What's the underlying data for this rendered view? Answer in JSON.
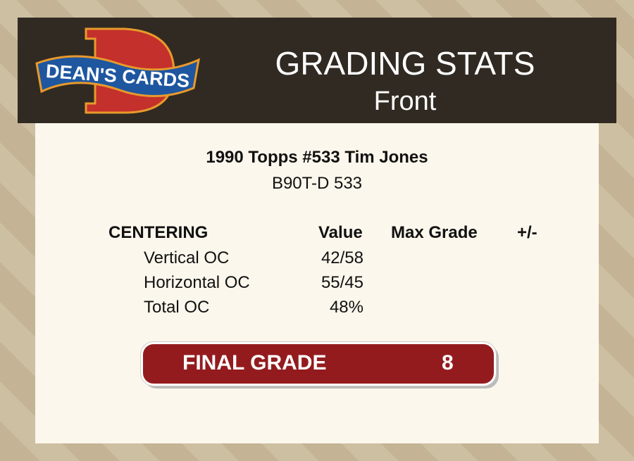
{
  "header": {
    "logo_text": "DEAN'S CARDS",
    "title": "GRADING STATS",
    "subtitle": "Front"
  },
  "card": {
    "name": "1990 Topps #533 Tim Jones",
    "code": "B90T-D 533"
  },
  "table": {
    "headers": [
      "CENTERING",
      "Value",
      "Max Grade",
      "+/-"
    ],
    "rows": [
      {
        "label": "Vertical OC",
        "value": "42/58"
      },
      {
        "label": "Horizontal OC",
        "value": "55/45"
      },
      {
        "label": "Total OC",
        "value": "48%"
      }
    ]
  },
  "final": {
    "label": "FINAL GRADE",
    "value": "8"
  },
  "colors": {
    "header": "#302a22",
    "panel": "#fcf7ec",
    "grade": "#931b1e"
  }
}
